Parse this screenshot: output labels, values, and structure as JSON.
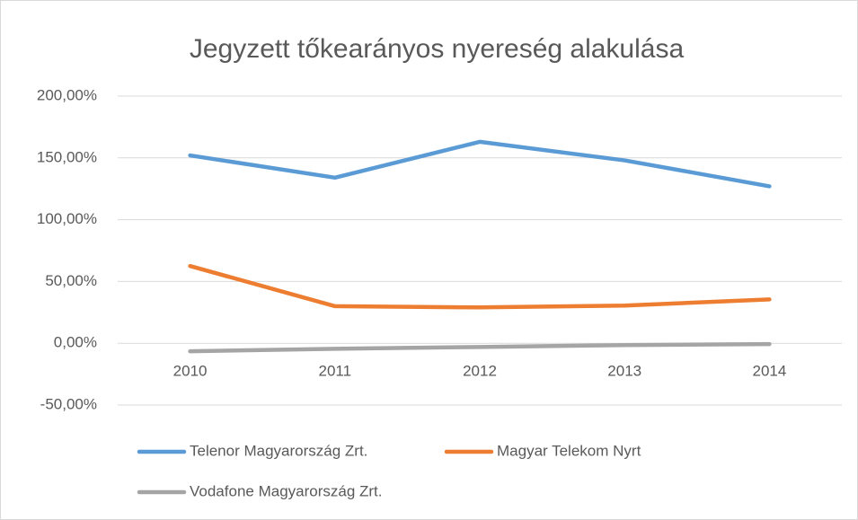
{
  "chart_data": {
    "type": "line",
    "title": "Jegyzett tőkearányos nyereség alakulása",
    "categories": [
      "2010",
      "2011",
      "2012",
      "2013",
      "2014"
    ],
    "series": [
      {
        "name": "Telenor Magyarország Zrt.",
        "color": "#5b9bd5",
        "values": [
          152,
          134,
          163,
          148,
          127
        ]
      },
      {
        "name": "Magyar Telekom Nyrt",
        "color": "#ed7d31",
        "values": [
          62.5,
          30,
          29,
          30.5,
          35.5
        ]
      },
      {
        "name": "Vodafone Magyarország Zrt.",
        "color": "#a5a5a5",
        "values": [
          -6.5,
          -4.5,
          -3,
          -1.5,
          -0.7
        ]
      }
    ],
    "ylim": [
      -50,
      200
    ],
    "yticks": [
      {
        "value": -50,
        "label": "-50,00%"
      },
      {
        "value": 0,
        "label": "0,00%"
      },
      {
        "value": 50,
        "label": "50,00%"
      },
      {
        "value": 100,
        "label": "100,00%"
      },
      {
        "value": 150,
        "label": "150,00%"
      },
      {
        "value": 200,
        "label": "200,00%"
      }
    ],
    "grid": true
  }
}
